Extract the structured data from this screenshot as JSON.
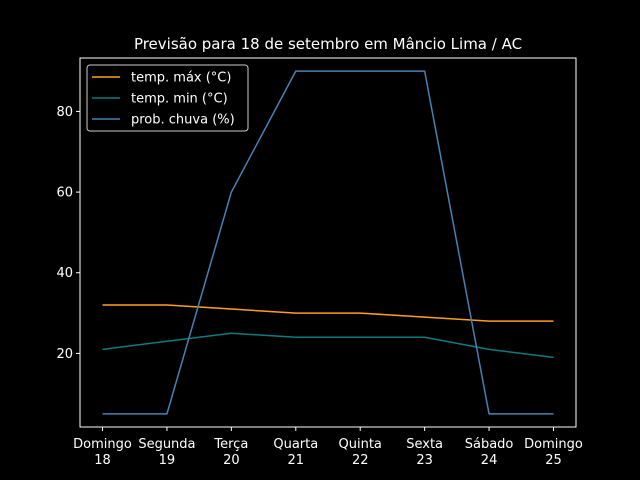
{
  "chart_data": {
    "type": "line",
    "title": "Previsão para 18 de setembro em Mâncio Lima / AC",
    "xlabel": "",
    "ylabel": "",
    "categories": [
      [
        "Domingo",
        "18"
      ],
      [
        "Segunda",
        "19"
      ],
      [
        "Terça",
        "20"
      ],
      [
        "Quarta",
        "21"
      ],
      [
        "Quinta",
        "22"
      ],
      [
        "Sexta",
        "23"
      ],
      [
        "Sábado",
        "24"
      ],
      [
        "Domingo",
        "25"
      ]
    ],
    "yticks": [
      "20",
      "40",
      "60",
      "80"
    ],
    "ylim": [
      1.75,
      93.25
    ],
    "grid": false,
    "legend_position": "upper left",
    "series": [
      {
        "name": "temp. máx (°C)",
        "color": "#ff9f1c",
        "values": [
          32,
          32,
          31,
          30,
          30,
          29,
          28,
          28
        ]
      },
      {
        "name": "temp. min (°C)",
        "color": "#0d7c7c",
        "values": [
          21,
          23,
          25,
          24,
          24,
          24,
          21,
          19
        ]
      },
      {
        "name": "prob. chuva (%)",
        "color": "#4682b4",
        "values": [
          5,
          5,
          60,
          90,
          90,
          90,
          5,
          5
        ]
      }
    ]
  }
}
